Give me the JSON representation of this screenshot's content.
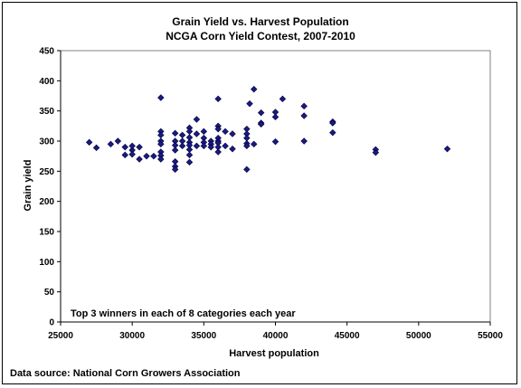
{
  "chart_data": {
    "type": "scatter",
    "title": "Grain Yield vs. Harvest Population",
    "subtitle": "NCGA Corn Yield Contest, 2007-2010",
    "xlabel": "Harvest population",
    "ylabel": "Grain yield",
    "annotation": "Top 3 winners in each of 8 categories each year",
    "source": "Data source: National Corn Growers Association",
    "xlim": [
      25000,
      55000
    ],
    "ylim": [
      0,
      450
    ],
    "xticks": [
      25000,
      30000,
      35000,
      40000,
      45000,
      50000,
      55000
    ],
    "yticks": [
      0,
      50,
      100,
      150,
      200,
      250,
      300,
      350,
      400,
      450
    ],
    "marker": "diamond",
    "marker_color": "#1a1a80",
    "grid": false,
    "legend": "none",
    "points": [
      [
        27000,
        298
      ],
      [
        27500,
        289
      ],
      [
        28500,
        295
      ],
      [
        29000,
        300
      ],
      [
        29500,
        277
      ],
      [
        29500,
        290
      ],
      [
        30000,
        285
      ],
      [
        30000,
        292
      ],
      [
        30000,
        278
      ],
      [
        30500,
        270
      ],
      [
        30500,
        290
      ],
      [
        31000,
        275
      ],
      [
        31500,
        275
      ],
      [
        32000,
        372
      ],
      [
        32000,
        316
      ],
      [
        32000,
        310
      ],
      [
        32000,
        300
      ],
      [
        32000,
        295
      ],
      [
        32000,
        282
      ],
      [
        32000,
        276
      ],
      [
        32000,
        270
      ],
      [
        33000,
        313
      ],
      [
        33000,
        300
      ],
      [
        33000,
        293
      ],
      [
        33000,
        285
      ],
      [
        33000,
        266
      ],
      [
        33000,
        258
      ],
      [
        33000,
        253
      ],
      [
        33500,
        310
      ],
      [
        33500,
        300
      ],
      [
        33500,
        292
      ],
      [
        34000,
        322
      ],
      [
        34000,
        316
      ],
      [
        34000,
        306
      ],
      [
        34000,
        298
      ],
      [
        34000,
        293
      ],
      [
        34000,
        286
      ],
      [
        34000,
        277
      ],
      [
        34000,
        265
      ],
      [
        34500,
        336
      ],
      [
        34500,
        312
      ],
      [
        34500,
        292
      ],
      [
        35000,
        316
      ],
      [
        35000,
        305
      ],
      [
        35000,
        298
      ],
      [
        35000,
        292
      ],
      [
        35500,
        300
      ],
      [
        35500,
        295
      ],
      [
        35500,
        290
      ],
      [
        36000,
        370
      ],
      [
        36000,
        325
      ],
      [
        36000,
        320
      ],
      [
        36000,
        305
      ],
      [
        36000,
        300
      ],
      [
        36000,
        297
      ],
      [
        36000,
        290
      ],
      [
        36000,
        282
      ],
      [
        36500,
        316
      ],
      [
        36500,
        292
      ],
      [
        37000,
        312
      ],
      [
        37000,
        287
      ],
      [
        38000,
        320
      ],
      [
        38000,
        312
      ],
      [
        38000,
        305
      ],
      [
        38000,
        296
      ],
      [
        38000,
        292
      ],
      [
        38000,
        253
      ],
      [
        38200,
        362
      ],
      [
        38500,
        386
      ],
      [
        38500,
        295
      ],
      [
        39000,
        347
      ],
      [
        39000,
        330
      ],
      [
        39000,
        328
      ],
      [
        40000,
        348
      ],
      [
        40000,
        340
      ],
      [
        40000,
        299
      ],
      [
        40500,
        370
      ],
      [
        42000,
        358
      ],
      [
        42000,
        342
      ],
      [
        42000,
        300
      ],
      [
        44000,
        332
      ],
      [
        44000,
        330
      ],
      [
        44000,
        314
      ],
      [
        47000,
        286
      ],
      [
        47000,
        281
      ],
      [
        52000,
        287
      ]
    ]
  }
}
